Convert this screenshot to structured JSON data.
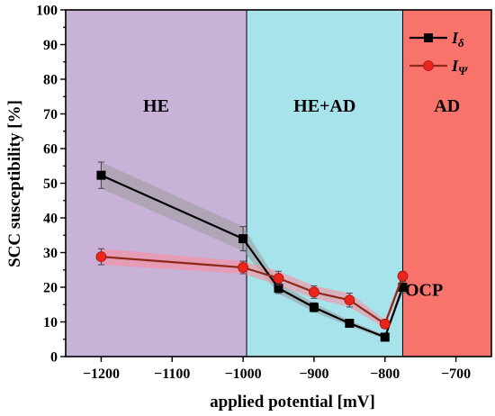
{
  "chart_data": {
    "type": "line",
    "xlabel": "applied potential [mV]",
    "ylabel": "SCC susceptibility [%]",
    "xlim": [
      -1250,
      -650
    ],
    "ylim": [
      0,
      100
    ],
    "xticks": [
      -1200,
      -1100,
      -1000,
      -900,
      -800,
      -700
    ],
    "yticks": [
      0,
      10,
      20,
      30,
      40,
      50,
      60,
      70,
      80,
      90,
      100
    ],
    "grid": false,
    "legend_position": "top-right",
    "regions": [
      {
        "label": "HE",
        "from": -1250,
        "to": -995,
        "color": "#c8b2d8"
      },
      {
        "label": "HE+AD",
        "from": -995,
        "to": -775,
        "color": "#a6e3ea"
      },
      {
        "label": "AD",
        "from": -775,
        "to": -650,
        "color": "#f9736d"
      }
    ],
    "annotations": [
      {
        "text": "OCP",
        "x": -745,
        "y": 17.5
      }
    ],
    "series": [
      {
        "name": "I",
        "subscript": "δ",
        "color": "#000000",
        "band_color": "#9a9a9a",
        "marker": "square",
        "x": [
          -1200,
          -1000,
          -950,
          -900,
          -850,
          -800,
          -775
        ],
        "y": [
          52.3,
          34.0,
          19.7,
          14.2,
          9.6,
          5.6,
          20.0
        ],
        "error": [
          3.8,
          3.5,
          1.5,
          1.3,
          0.8,
          0.6,
          1.6
        ]
      },
      {
        "name": "I",
        "subscript": "Ψ",
        "color": "#8b2a1a",
        "marker_color": "#e8261b",
        "band_color": "#ff8a99",
        "marker": "circle",
        "x": [
          -1200,
          -1000,
          -950,
          -900,
          -850,
          -800,
          -775
        ],
        "y": [
          28.8,
          25.7,
          22.6,
          18.6,
          16.3,
          9.4,
          23.2
        ],
        "error": [
          2.3,
          1.8,
          2.0,
          1.8,
          2.0,
          1.2,
          1.3
        ]
      }
    ]
  }
}
